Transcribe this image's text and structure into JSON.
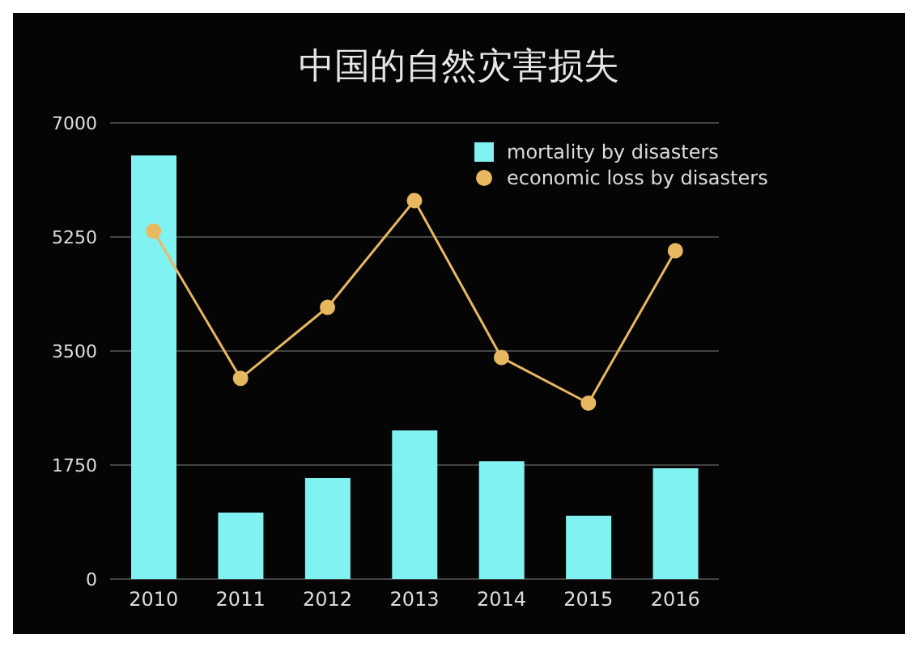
{
  "chart_data": {
    "type": "bar",
    "title": "中国的自然灾害损失",
    "categories": [
      "2010",
      "2011",
      "2012",
      "2013",
      "2014",
      "2015",
      "2016"
    ],
    "series": [
      {
        "name": "mortality by disasters",
        "color": "#80f2f2",
        "values": [
          6500,
          1020,
          1550,
          2280,
          1810,
          970,
          1700
        ]
      },
      {
        "name": "economic loss by disasters",
        "type": "line",
        "color": "#e8b860",
        "values": [
          5340,
          3080,
          4170,
          5810,
          3400,
          2700,
          5040
        ]
      }
    ],
    "ylim": [
      0,
      7000
    ],
    "yticks": [
      0,
      1750,
      3500,
      5250,
      7000
    ],
    "grid": "y",
    "legend": "top right",
    "marker": "circle"
  }
}
